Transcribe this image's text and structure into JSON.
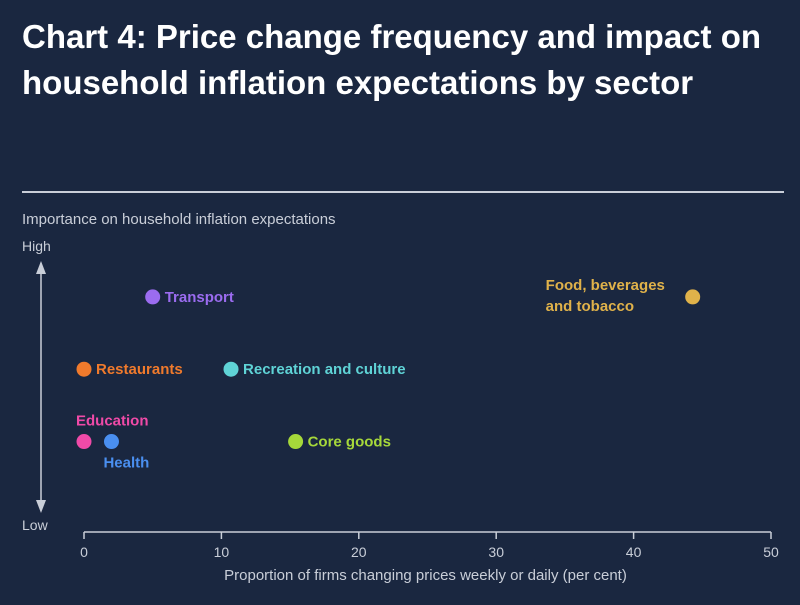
{
  "title": "Chart 4: Price change frequency and impact on household inflation expectations by sector",
  "chart_data": {
    "type": "scatter",
    "title": "Chart 4: Price change frequency and impact on household inflation expectations by sector",
    "xlabel": "Proportion of firms changing prices weekly or daily (per cent)",
    "ylabel": "Importance on household inflation expectations",
    "y_high_label": "High",
    "y_low_label": "Low",
    "xlim": [
      0,
      50
    ],
    "xticks": [
      "0",
      "10",
      "20",
      "30",
      "40",
      "50"
    ],
    "grid": false,
    "legend": "none",
    "points": [
      {
        "label": "Transport",
        "x": 5,
        "y": 0.88,
        "color": "#9b6cf0"
      },
      {
        "label": "Food, beverages and tobacco",
        "x": 44.3,
        "y": 0.88,
        "color": "#e0b24a"
      },
      {
        "label": "Restaurants",
        "x": 0,
        "y": 0.58,
        "color": "#f07a2c"
      },
      {
        "label": "Recreation and culture",
        "x": 10.7,
        "y": 0.58,
        "color": "#5fd3d6"
      },
      {
        "label": "Education",
        "x": 0,
        "y": 0.28,
        "color": "#f04aa8"
      },
      {
        "label": "Health",
        "x": 2,
        "y": 0.28,
        "color": "#4a8ff0"
      },
      {
        "label": "Core goods",
        "x": 15.4,
        "y": 0.28,
        "color": "#a6d83a"
      }
    ]
  },
  "colors": {
    "background": "#1a2740",
    "axis": "#c9ced8",
    "text": "#ffffff"
  }
}
